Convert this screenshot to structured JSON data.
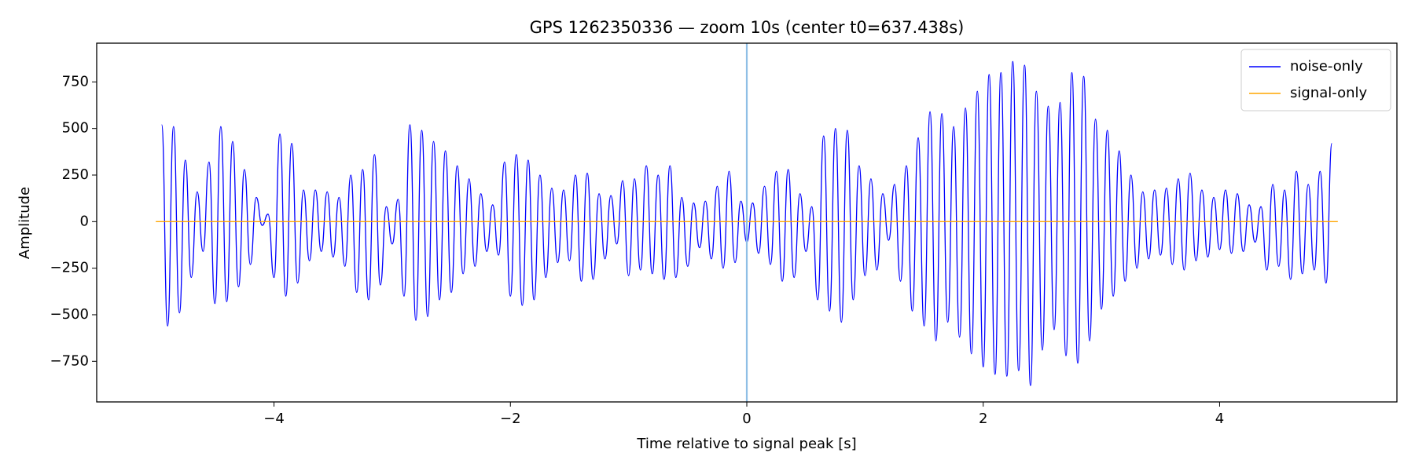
{
  "chart_data": {
    "type": "line",
    "title": "GPS 1262350336 — zoom 10s (center t0=637.438s)",
    "x_label": "Time relative to signal peak [s]",
    "y_label": "Amplitude",
    "xlim": [
      -5.5,
      5.5
    ],
    "ylim": [
      -968,
      958
    ],
    "xticks": [
      {
        "value": -4,
        "label": "−4"
      },
      {
        "value": -2,
        "label": "−2"
      },
      0,
      2,
      4
    ],
    "yticks": [
      {
        "value": -750,
        "label": "−750"
      },
      {
        "value": -500,
        "label": "−500"
      },
      {
        "value": -250,
        "label": "−250"
      },
      0,
      250,
      500,
      750
    ],
    "legend": "upper right",
    "axvline": {
      "x": 0,
      "color": "#8fbfe6"
    },
    "series": [
      {
        "name": "noise-only",
        "color": "#0000ff",
        "x": [
          -4.95,
          -4.9,
          -4.85,
          -4.8,
          -4.75,
          -4.7,
          -4.65,
          -4.6,
          -4.55,
          -4.5,
          -4.45,
          -4.4,
          -4.35,
          -4.3,
          -4.25,
          -4.2,
          -4.15,
          -4.1,
          -4.05,
          -4.0,
          -3.95,
          -3.9,
          -3.85,
          -3.8,
          -3.75,
          -3.7,
          -3.65,
          -3.6,
          -3.55,
          -3.5,
          -3.45,
          -3.4,
          -3.35,
          -3.3,
          -3.25,
          -3.2,
          -3.15,
          -3.1,
          -3.05,
          -3.0,
          -2.95,
          -2.9,
          -2.85,
          -2.8,
          -2.75,
          -2.7,
          -2.65,
          -2.6,
          -2.55,
          -2.5,
          -2.45,
          -2.4,
          -2.35,
          -2.3,
          -2.25,
          -2.2,
          -2.15,
          -2.1,
          -2.05,
          -2.0,
          -1.95,
          -1.9,
          -1.85,
          -1.8,
          -1.75,
          -1.7,
          -1.65,
          -1.6,
          -1.55,
          -1.5,
          -1.45,
          -1.4,
          -1.35,
          -1.3,
          -1.25,
          -1.2,
          -1.15,
          -1.1,
          -1.05,
          -1.0,
          -0.95,
          -0.9,
          -0.85,
          -0.8,
          -0.75,
          -0.7,
          -0.65,
          -0.6,
          -0.55,
          -0.5,
          -0.45,
          -0.4,
          -0.35,
          -0.3,
          -0.25,
          -0.2,
          -0.15,
          -0.1,
          -0.05,
          0.0,
          0.05,
          0.1,
          0.15,
          0.2,
          0.25,
          0.3,
          0.35,
          0.4,
          0.45,
          0.5,
          0.55,
          0.6,
          0.65,
          0.7,
          0.75,
          0.8,
          0.85,
          0.9,
          0.95,
          1.0,
          1.05,
          1.1,
          1.15,
          1.2,
          1.25,
          1.3,
          1.35,
          1.4,
          1.45,
          1.5,
          1.55,
          1.6,
          1.65,
          1.7,
          1.75,
          1.8,
          1.85,
          1.9,
          1.95,
          2.0,
          2.05,
          2.1,
          2.15,
          2.2,
          2.25,
          2.3,
          2.35,
          2.4,
          2.45,
          2.5,
          2.55,
          2.6,
          2.65,
          2.7,
          2.75,
          2.8,
          2.85,
          2.9,
          2.95,
          3.0,
          3.05,
          3.1,
          3.15,
          3.2,
          3.25,
          3.3,
          3.35,
          3.4,
          3.45,
          3.5,
          3.55,
          3.6,
          3.65,
          3.7,
          3.75,
          3.8,
          3.85,
          3.9,
          3.95,
          4.0,
          4.05,
          4.1,
          4.15,
          4.2,
          4.25,
          4.3,
          4.35,
          4.4,
          4.45,
          4.5,
          4.55,
          4.6,
          4.65,
          4.7,
          4.75,
          4.8,
          4.85,
          4.9,
          4.95
        ],
        "values": [
          520,
          -560,
          510,
          -490,
          330,
          -300,
          160,
          -160,
          320,
          -440,
          510,
          -430,
          430,
          -350,
          280,
          -230,
          130,
          -20,
          40,
          -300,
          470,
          -400,
          420,
          -330,
          170,
          -210,
          170,
          -160,
          160,
          -190,
          130,
          -240,
          250,
          -380,
          280,
          -420,
          360,
          -340,
          80,
          -120,
          120,
          -400,
          520,
          -530,
          490,
          -510,
          430,
          -420,
          380,
          -380,
          300,
          -280,
          230,
          -240,
          150,
          -160,
          90,
          -180,
          320,
          -400,
          360,
          -450,
          330,
          -420,
          250,
          -300,
          180,
          -220,
          170,
          -210,
          250,
          -320,
          260,
          -310,
          150,
          -200,
          140,
          -120,
          220,
          -290,
          230,
          -260,
          300,
          -280,
          250,
          -310,
          300,
          -300,
          130,
          -240,
          100,
          -140,
          110,
          -200,
          190,
          -250,
          270,
          -220,
          110,
          -110,
          100,
          -170,
          190,
          -230,
          270,
          -320,
          280,
          -300,
          150,
          -160,
          80,
          -420,
          460,
          -480,
          500,
          -540,
          490,
          -420,
          300,
          -290,
          230,
          -260,
          150,
          -100,
          200,
          -320,
          300,
          -480,
          450,
          -560,
          590,
          -640,
          580,
          -540,
          510,
          -620,
          610,
          -710,
          700,
          -780,
          790,
          -820,
          800,
          -830,
          860,
          -800,
          840,
          -880,
          700,
          -690,
          620,
          -580,
          640,
          -720,
          800,
          -760,
          780,
          -640,
          550,
          -470,
          490,
          -400,
          380,
          -320,
          250,
          -250,
          160,
          -200,
          170,
          -180,
          180,
          -230,
          230,
          -260,
          260,
          -210,
          170,
          -190,
          130,
          -150,
          170,
          -170,
          150,
          -160,
          90,
          -110,
          80,
          -260,
          200,
          -240,
          170,
          -310,
          270,
          -280,
          200,
          -260,
          270,
          -330,
          420
        ]
      },
      {
        "name": "signal-only",
        "color": "#ffa500",
        "x": [
          -5,
          5
        ],
        "values": [
          0,
          0
        ]
      }
    ]
  }
}
